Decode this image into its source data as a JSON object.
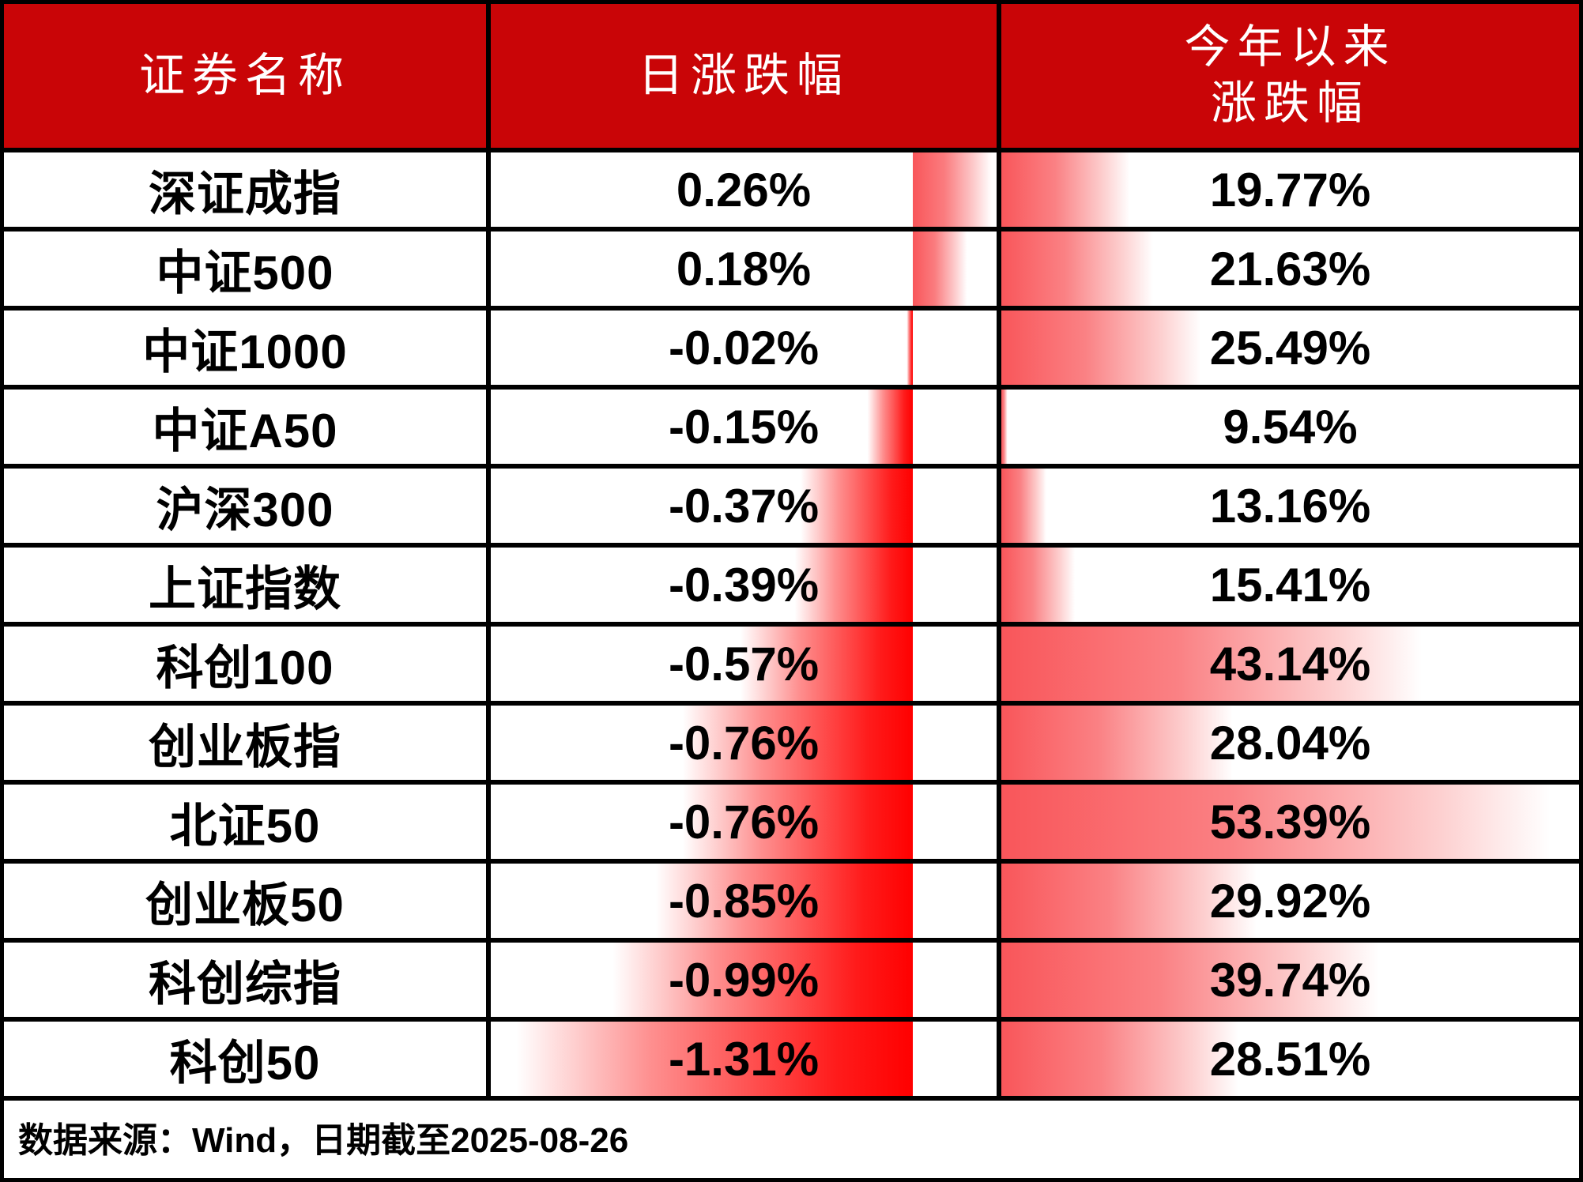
{
  "header": {
    "col1": "证券名称",
    "col2": "日涨跌幅",
    "col3_line1": "今年以来",
    "col3_line2": "涨跌幅"
  },
  "rows": [
    {
      "name": "深证成指",
      "daily": "0.26%",
      "ytd": "19.77%"
    },
    {
      "name": "中证500",
      "daily": "0.18%",
      "ytd": "21.63%"
    },
    {
      "name": "中证1000",
      "daily": "-0.02%",
      "ytd": "25.49%"
    },
    {
      "name": "中证A50",
      "daily": "-0.15%",
      "ytd": "9.54%"
    },
    {
      "name": "沪深300",
      "daily": "-0.37%",
      "ytd": "13.16%"
    },
    {
      "name": "上证指数",
      "daily": "-0.39%",
      "ytd": "15.41%"
    },
    {
      "name": "科创100",
      "daily": "-0.57%",
      "ytd": "43.14%"
    },
    {
      "name": "创业板指",
      "daily": "-0.76%",
      "ytd": "28.04%"
    },
    {
      "name": "北证50",
      "daily": "-0.76%",
      "ytd": "53.39%"
    },
    {
      "name": "创业板50",
      "daily": "-0.85%",
      "ytd": "29.92%"
    },
    {
      "name": "科创综指",
      "daily": "-0.99%",
      "ytd": "39.74%"
    },
    {
      "name": "科创50",
      "daily": "-1.31%",
      "ytd": "28.51%"
    }
  ],
  "footer": {
    "text": "数据来源：Wind，日期截至2025-08-26"
  },
  "colors": {
    "header_bg": "#c90507",
    "border": "#000000",
    "negative_bar_red": "#ff0000",
    "positive_bar_red": "#f9565a"
  },
  "chart_data": {
    "type": "table",
    "title": "",
    "columns": [
      "证券名称",
      "日涨跌幅",
      "今年以来涨跌幅"
    ],
    "categories": [
      "深证成指",
      "中证500",
      "中证1000",
      "中证A50",
      "沪深300",
      "上证指数",
      "科创100",
      "创业板指",
      "北证50",
      "创业板50",
      "科创综指",
      "科创50"
    ],
    "series": [
      {
        "name": "日涨跌幅",
        "unit": "%",
        "values": [
          0.26,
          0.18,
          -0.02,
          -0.15,
          -0.37,
          -0.39,
          -0.57,
          -0.76,
          -0.76,
          -0.85,
          -0.99,
          -1.31
        ],
        "bar_style": "gradient-databar",
        "bar_min": -1.31,
        "bar_max": 0.26,
        "bar_axis": "automatic"
      },
      {
        "name": "今年以来涨跌幅",
        "unit": "%",
        "values": [
          19.77,
          21.63,
          25.49,
          9.54,
          13.16,
          15.41,
          43.14,
          28.04,
          53.39,
          29.92,
          39.74,
          28.51
        ],
        "bar_style": "gradient-databar",
        "bar_min": 9.54,
        "bar_max": 53.39
      }
    ],
    "layout_hints": {
      "bars_in_cells": true,
      "grid": "black-borders"
    },
    "source_note": "数据来源：Wind，日期截至2025-08-26"
  }
}
